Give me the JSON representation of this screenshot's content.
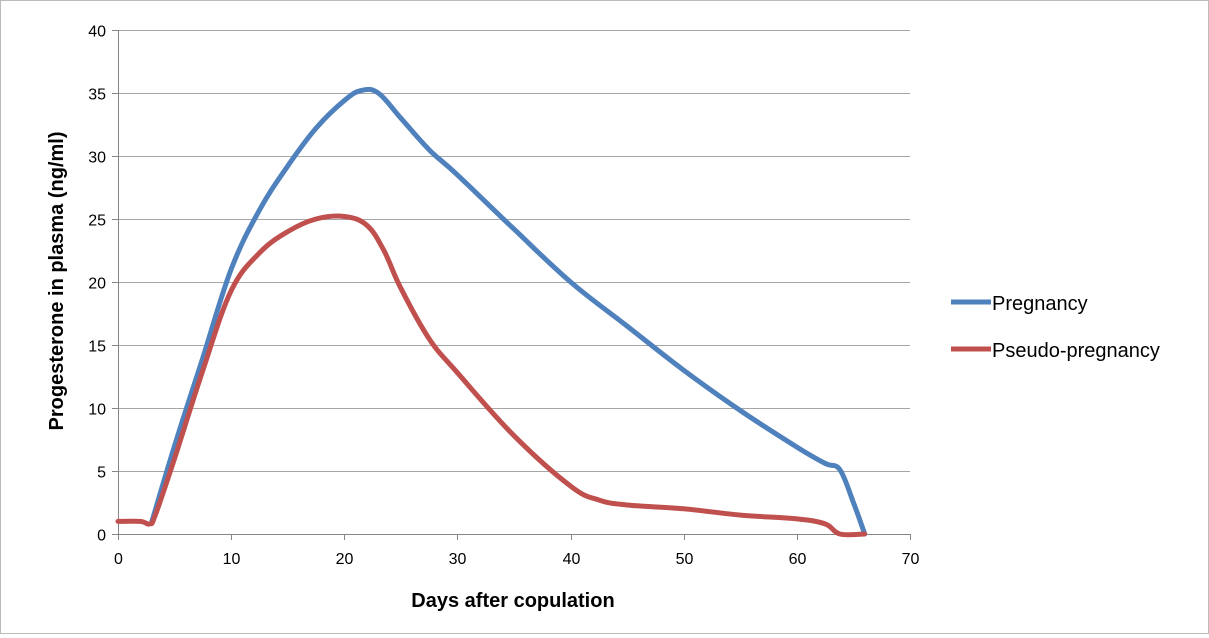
{
  "chart_data": {
    "type": "line",
    "title": "",
    "xlabel": "Days after copulation",
    "ylabel": "Progesterone in plasma  (ng/ml)",
    "xlim": [
      0,
      70
    ],
    "ylim": [
      0,
      40
    ],
    "x_ticks": [
      0,
      10,
      20,
      30,
      40,
      50,
      60,
      70
    ],
    "y_ticks": [
      0,
      5,
      10,
      15,
      20,
      25,
      30,
      35,
      40
    ],
    "grid": "horizontal",
    "legend_position": "right",
    "series": [
      {
        "name": "Pregnancy",
        "color": "#4f81bd",
        "points": [
          [
            3,
            1
          ],
          [
            5,
            7
          ],
          [
            7.5,
            14
          ],
          [
            10,
            21
          ],
          [
            12.5,
            25.7
          ],
          [
            15,
            29.2
          ],
          [
            17.5,
            32.2
          ],
          [
            20,
            34.4
          ],
          [
            21.5,
            35.2
          ],
          [
            23,
            35
          ],
          [
            25,
            33
          ],
          [
            27.5,
            30.5
          ],
          [
            30,
            28.5
          ],
          [
            35,
            24.2
          ],
          [
            40,
            20
          ],
          [
            45,
            16.5
          ],
          [
            50,
            13
          ],
          [
            55,
            9.8
          ],
          [
            60,
            6.9
          ],
          [
            62.5,
            5.6
          ],
          [
            63.8,
            5.1
          ],
          [
            65,
            2.5
          ],
          [
            66,
            0
          ]
        ]
      },
      {
        "name": "Pseudo-pregnancy",
        "color": "#c0504d",
        "points": [
          [
            0,
            1
          ],
          [
            2,
            1
          ],
          [
            2.8,
            0.8
          ],
          [
            3.3,
            1.5
          ],
          [
            5,
            6
          ],
          [
            7.5,
            13
          ],
          [
            10,
            19.3
          ],
          [
            12.5,
            22.3
          ],
          [
            15,
            24
          ],
          [
            17.5,
            25
          ],
          [
            20,
            25.2
          ],
          [
            22,
            24.5
          ],
          [
            23.5,
            22.5
          ],
          [
            25,
            19.5
          ],
          [
            27.5,
            15.5
          ],
          [
            30,
            12.8
          ],
          [
            35,
            7.8
          ],
          [
            40,
            3.8
          ],
          [
            42.5,
            2.7
          ],
          [
            45,
            2.3
          ],
          [
            50,
            2
          ],
          [
            55,
            1.5
          ],
          [
            60,
            1.2
          ],
          [
            62.5,
            0.8
          ],
          [
            63.8,
            0
          ],
          [
            66,
            0
          ]
        ]
      }
    ]
  }
}
